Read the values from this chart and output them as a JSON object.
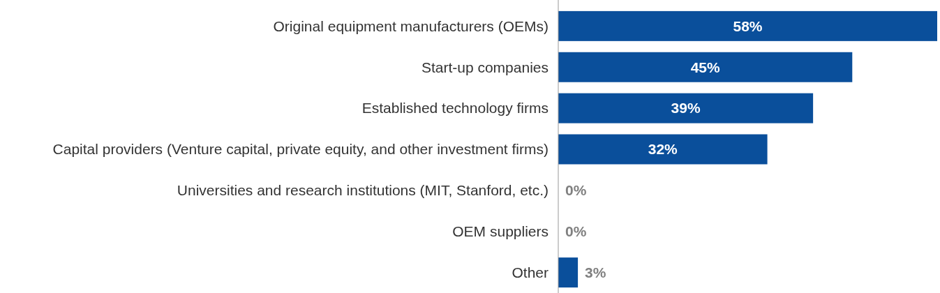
{
  "chart_data": {
    "type": "bar",
    "orientation": "horizontal",
    "categories": [
      "Original equipment manufacturers (OEMs)",
      "Start-up companies",
      "Established technology firms",
      "Capital providers (Venture capital, private equity, and other investment firms)",
      "Universities and research institutions (MIT, Stanford, etc.)",
      "OEM suppliers",
      "Other"
    ],
    "values": [
      58,
      45,
      39,
      32,
      0,
      0,
      3
    ],
    "color": "#0a4f9b",
    "value_labels": [
      "58%",
      "45%",
      "39%",
      "32%",
      "0%",
      "0%",
      "3%"
    ],
    "tick_labels": "y"
  }
}
